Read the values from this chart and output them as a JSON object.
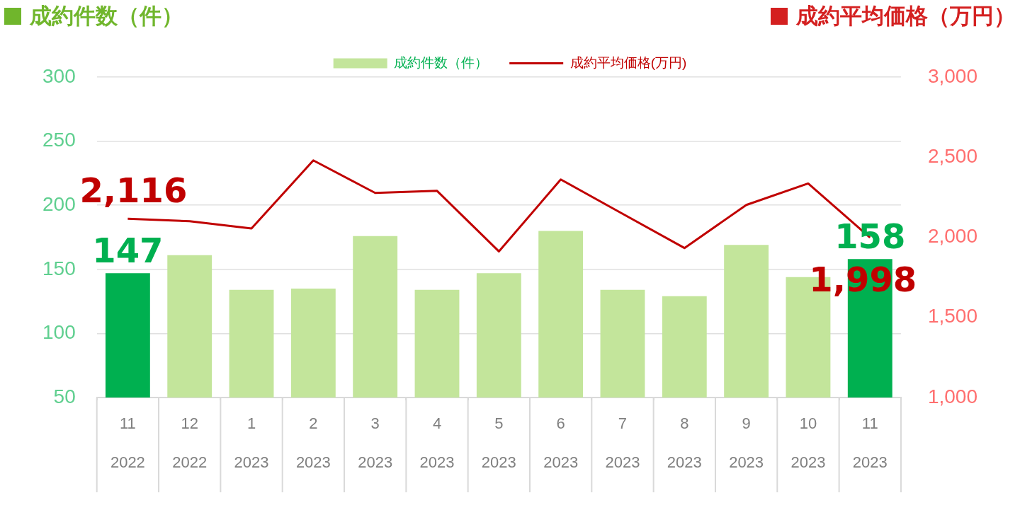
{
  "chart_data": {
    "type": "bar",
    "ylabel": "成約件数（件）",
    "y2label": "成約平均価格（万円）",
    "categories": [
      "11\n2022",
      "12\n2022",
      "1\n2023",
      "2\n2023",
      "3\n2023",
      "4\n2023",
      "5\n2023",
      "6\n2023",
      "7\n2023",
      "8\n2023",
      "9\n2023",
      "10\n2023",
      "11\n2023"
    ],
    "series": [
      {
        "name": "成約件数（件）",
        "color": "#c3e59b",
        "colors": [
          "#00b050",
          "#c3e59b",
          "#c3e59b",
          "#c3e59b",
          "#c3e59b",
          "#c3e59b",
          "#c3e59b",
          "#c3e59b",
          "#c3e59b",
          "#c3e59b",
          "#c3e59b",
          "#c3e59b",
          "#00b050"
        ],
        "values": [
          147,
          161,
          134,
          135,
          176,
          134,
          147,
          180,
          134,
          129,
          169,
          144,
          158
        ],
        "value_labels": [
          "147",
          null,
          null,
          null,
          null,
          null,
          null,
          null,
          null,
          null,
          null,
          null,
          "158"
        ]
      },
      {
        "name": "成約平均価格(万円)",
        "type": "line",
        "axis": "y2",
        "color": "#c00000",
        "values": [
          2116,
          2100,
          2055,
          2480,
          2277,
          2290,
          1912,
          2361,
          2147,
          1933,
          2202,
          2336,
          1998
        ],
        "value_labels": [
          "2,116",
          null,
          null,
          null,
          null,
          null,
          null,
          null,
          null,
          null,
          null,
          null,
          "1,998"
        ]
      }
    ],
    "ylim": [
      50,
      300
    ],
    "yticks": [
      50,
      100,
      150,
      200,
      250,
      300
    ],
    "y2lim": [
      1000,
      3000
    ],
    "y2ticks": [
      {
        "value": 1000,
        "label": "1,000"
      },
      {
        "value": 1500,
        "label": "1,500"
      },
      {
        "value": 2000,
        "label": "2,000"
      },
      {
        "value": 2500,
        "label": "2,500"
      },
      {
        "value": 3000,
        "label": "3,000"
      }
    ],
    "grid": "y",
    "legend": "top",
    "marker": "none",
    "line_style": "solid"
  }
}
